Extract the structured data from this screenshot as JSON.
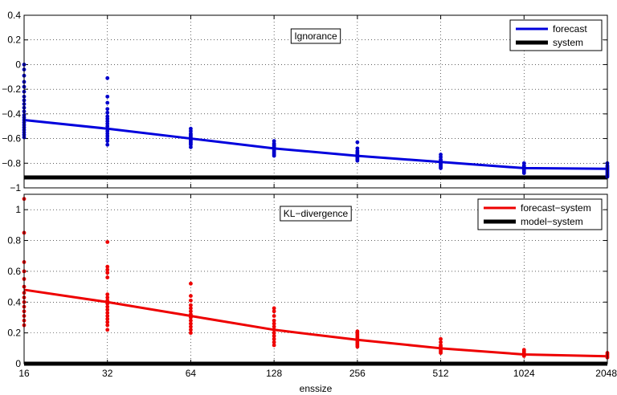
{
  "chart_data": [
    {
      "type": "scatter",
      "title": "Ignorance",
      "xlabel": "",
      "ylabel": "",
      "x_scale": "log2",
      "xticks": [
        16,
        32,
        64,
        128,
        256,
        512,
        1024,
        2048
      ],
      "xlim": [
        16,
        2048
      ],
      "ylim": [
        -1,
        0.4
      ],
      "yticks": [
        -1,
        -0.8,
        -0.6,
        -0.4,
        -0.2,
        0,
        0.2,
        0.4
      ],
      "grid": true,
      "legend_position": "top-right",
      "scatter_color": "#0000cc",
      "points": [
        [
          16,
          0.0
        ],
        [
          16,
          -0.04
        ],
        [
          16,
          -0.09
        ],
        [
          16,
          -0.14
        ],
        [
          16,
          -0.18
        ],
        [
          16,
          -0.22
        ],
        [
          16,
          -0.26
        ],
        [
          16,
          -0.29
        ],
        [
          16,
          -0.32
        ],
        [
          16,
          -0.35
        ],
        [
          16,
          -0.38
        ],
        [
          16,
          -0.41
        ],
        [
          16,
          -0.43
        ],
        [
          16,
          -0.45
        ],
        [
          16,
          -0.47
        ],
        [
          16,
          -0.49
        ],
        [
          16,
          -0.51
        ],
        [
          16,
          -0.53
        ],
        [
          16,
          -0.55
        ],
        [
          16,
          -0.57
        ],
        [
          16,
          -0.59
        ],
        [
          32,
          -0.11
        ],
        [
          32,
          -0.26
        ],
        [
          32,
          -0.31
        ],
        [
          32,
          -0.36
        ],
        [
          32,
          -0.39
        ],
        [
          32,
          -0.42
        ],
        [
          32,
          -0.44
        ],
        [
          32,
          -0.46
        ],
        [
          32,
          -0.48
        ],
        [
          32,
          -0.5
        ],
        [
          32,
          -0.52
        ],
        [
          32,
          -0.54
        ],
        [
          32,
          -0.56
        ],
        [
          32,
          -0.58
        ],
        [
          32,
          -0.6
        ],
        [
          32,
          -0.62
        ],
        [
          32,
          -0.65
        ],
        [
          64,
          -0.52
        ],
        [
          64,
          -0.54
        ],
        [
          64,
          -0.56
        ],
        [
          64,
          -0.57
        ],
        [
          64,
          -0.58
        ],
        [
          64,
          -0.59
        ],
        [
          64,
          -0.6
        ],
        [
          64,
          -0.61
        ],
        [
          64,
          -0.62
        ],
        [
          64,
          -0.63
        ],
        [
          64,
          -0.64
        ],
        [
          64,
          -0.65
        ],
        [
          64,
          -0.67
        ],
        [
          128,
          -0.62
        ],
        [
          128,
          -0.64
        ],
        [
          128,
          -0.65
        ],
        [
          128,
          -0.66
        ],
        [
          128,
          -0.67
        ],
        [
          128,
          -0.68
        ],
        [
          128,
          -0.69
        ],
        [
          128,
          -0.7
        ],
        [
          128,
          -0.71
        ],
        [
          128,
          -0.72
        ],
        [
          128,
          -0.73
        ],
        [
          128,
          -0.74
        ],
        [
          256,
          -0.63
        ],
        [
          256,
          -0.68
        ],
        [
          256,
          -0.7
        ],
        [
          256,
          -0.71
        ],
        [
          256,
          -0.72
        ],
        [
          256,
          -0.73
        ],
        [
          256,
          -0.74
        ],
        [
          256,
          -0.75
        ],
        [
          256,
          -0.76
        ],
        [
          256,
          -0.77
        ],
        [
          256,
          -0.78
        ],
        [
          512,
          -0.73
        ],
        [
          512,
          -0.75
        ],
        [
          512,
          -0.77
        ],
        [
          512,
          -0.78
        ],
        [
          512,
          -0.79
        ],
        [
          512,
          -0.8
        ],
        [
          512,
          -0.81
        ],
        [
          512,
          -0.82
        ],
        [
          512,
          -0.83
        ],
        [
          512,
          -0.84
        ],
        [
          1024,
          -0.8
        ],
        [
          1024,
          -0.82
        ],
        [
          1024,
          -0.83
        ],
        [
          1024,
          -0.84
        ],
        [
          1024,
          -0.85
        ],
        [
          1024,
          -0.86
        ],
        [
          1024,
          -0.87
        ],
        [
          1024,
          -0.88
        ],
        [
          2048,
          -0.8
        ],
        [
          2048,
          -0.82
        ],
        [
          2048,
          -0.83
        ],
        [
          2048,
          -0.84
        ],
        [
          2048,
          -0.85
        ],
        [
          2048,
          -0.86
        ],
        [
          2048,
          -0.87
        ],
        [
          2048,
          -0.88
        ],
        [
          2048,
          -0.89
        ],
        [
          2048,
          -0.9
        ],
        [
          2048,
          -0.91
        ]
      ],
      "series": [
        {
          "name": "forecast",
          "color": "#0000dd",
          "x": [
            16,
            32,
            64,
            128,
            256,
            512,
            1024,
            2048
          ],
          "values": [
            -0.45,
            -0.52,
            -0.6,
            -0.68,
            -0.74,
            -0.79,
            -0.84,
            -0.845
          ]
        },
        {
          "name": "system",
          "color": "#000000",
          "x": [
            16,
            2048
          ],
          "values": [
            -0.915,
            -0.915
          ]
        }
      ]
    },
    {
      "type": "scatter",
      "title": "KL−divergence",
      "xlabel": "enssize",
      "ylabel": "",
      "x_scale": "log2",
      "xticks": [
        16,
        32,
        64,
        128,
        256,
        512,
        1024,
        2048
      ],
      "xlim": [
        16,
        2048
      ],
      "ylim": [
        0,
        1.1
      ],
      "yticks": [
        0,
        0.2,
        0.4,
        0.6,
        0.8,
        1
      ],
      "grid": true,
      "legend_position": "top-right",
      "scatter_color": "#ee0000",
      "points": [
        [
          16,
          1.07
        ],
        [
          16,
          0.85
        ],
        [
          16,
          0.66
        ],
        [
          16,
          0.6
        ],
        [
          16,
          0.55
        ],
        [
          16,
          0.5
        ],
        [
          16,
          0.46
        ],
        [
          16,
          0.43
        ],
        [
          16,
          0.4
        ],
        [
          16,
          0.37
        ],
        [
          16,
          0.34
        ],
        [
          16,
          0.31
        ],
        [
          16,
          0.28
        ],
        [
          16,
          0.25
        ],
        [
          32,
          0.79
        ],
        [
          32,
          0.63
        ],
        [
          32,
          0.61
        ],
        [
          32,
          0.59
        ],
        [
          32,
          0.56
        ],
        [
          32,
          0.45
        ],
        [
          32,
          0.43
        ],
        [
          32,
          0.41
        ],
        [
          32,
          0.39
        ],
        [
          32,
          0.37
        ],
        [
          32,
          0.35
        ],
        [
          32,
          0.33
        ],
        [
          32,
          0.31
        ],
        [
          32,
          0.29
        ],
        [
          32,
          0.27
        ],
        [
          32,
          0.25
        ],
        [
          32,
          0.22
        ],
        [
          64,
          0.52
        ],
        [
          64,
          0.44
        ],
        [
          64,
          0.41
        ],
        [
          64,
          0.38
        ],
        [
          64,
          0.36
        ],
        [
          64,
          0.34
        ],
        [
          64,
          0.32
        ],
        [
          64,
          0.3
        ],
        [
          64,
          0.28
        ],
        [
          64,
          0.26
        ],
        [
          64,
          0.24
        ],
        [
          64,
          0.22
        ],
        [
          64,
          0.2
        ],
        [
          128,
          0.36
        ],
        [
          128,
          0.34
        ],
        [
          128,
          0.31
        ],
        [
          128,
          0.28
        ],
        [
          128,
          0.26
        ],
        [
          128,
          0.24
        ],
        [
          128,
          0.22
        ],
        [
          128,
          0.2
        ],
        [
          128,
          0.18
        ],
        [
          128,
          0.16
        ],
        [
          128,
          0.14
        ],
        [
          128,
          0.12
        ],
        [
          256,
          0.21
        ],
        [
          256,
          0.2
        ],
        [
          256,
          0.19
        ],
        [
          256,
          0.18
        ],
        [
          256,
          0.17
        ],
        [
          256,
          0.16
        ],
        [
          256,
          0.15
        ],
        [
          256,
          0.14
        ],
        [
          256,
          0.13
        ],
        [
          256,
          0.12
        ],
        [
          256,
          0.11
        ],
        [
          512,
          0.16
        ],
        [
          512,
          0.14
        ],
        [
          512,
          0.12
        ],
        [
          512,
          0.11
        ],
        [
          512,
          0.1
        ],
        [
          512,
          0.09
        ],
        [
          512,
          0.08
        ],
        [
          512,
          0.07
        ],
        [
          1024,
          0.09
        ],
        [
          1024,
          0.08
        ],
        [
          1024,
          0.07
        ],
        [
          1024,
          0.06
        ],
        [
          1024,
          0.05
        ],
        [
          2048,
          0.07
        ],
        [
          2048,
          0.06
        ],
        [
          2048,
          0.05
        ],
        [
          2048,
          0.04
        ]
      ],
      "series": [
        {
          "name": "forecast−system",
          "color": "#ee0000",
          "x": [
            16,
            32,
            64,
            128,
            256,
            512,
            1024,
            2048
          ],
          "values": [
            0.48,
            0.4,
            0.31,
            0.22,
            0.155,
            0.1,
            0.06,
            0.048
          ]
        },
        {
          "name": "model−system",
          "color": "#000000",
          "x": [
            16,
            2048
          ],
          "values": [
            0.0,
            0.0
          ]
        }
      ]
    }
  ]
}
